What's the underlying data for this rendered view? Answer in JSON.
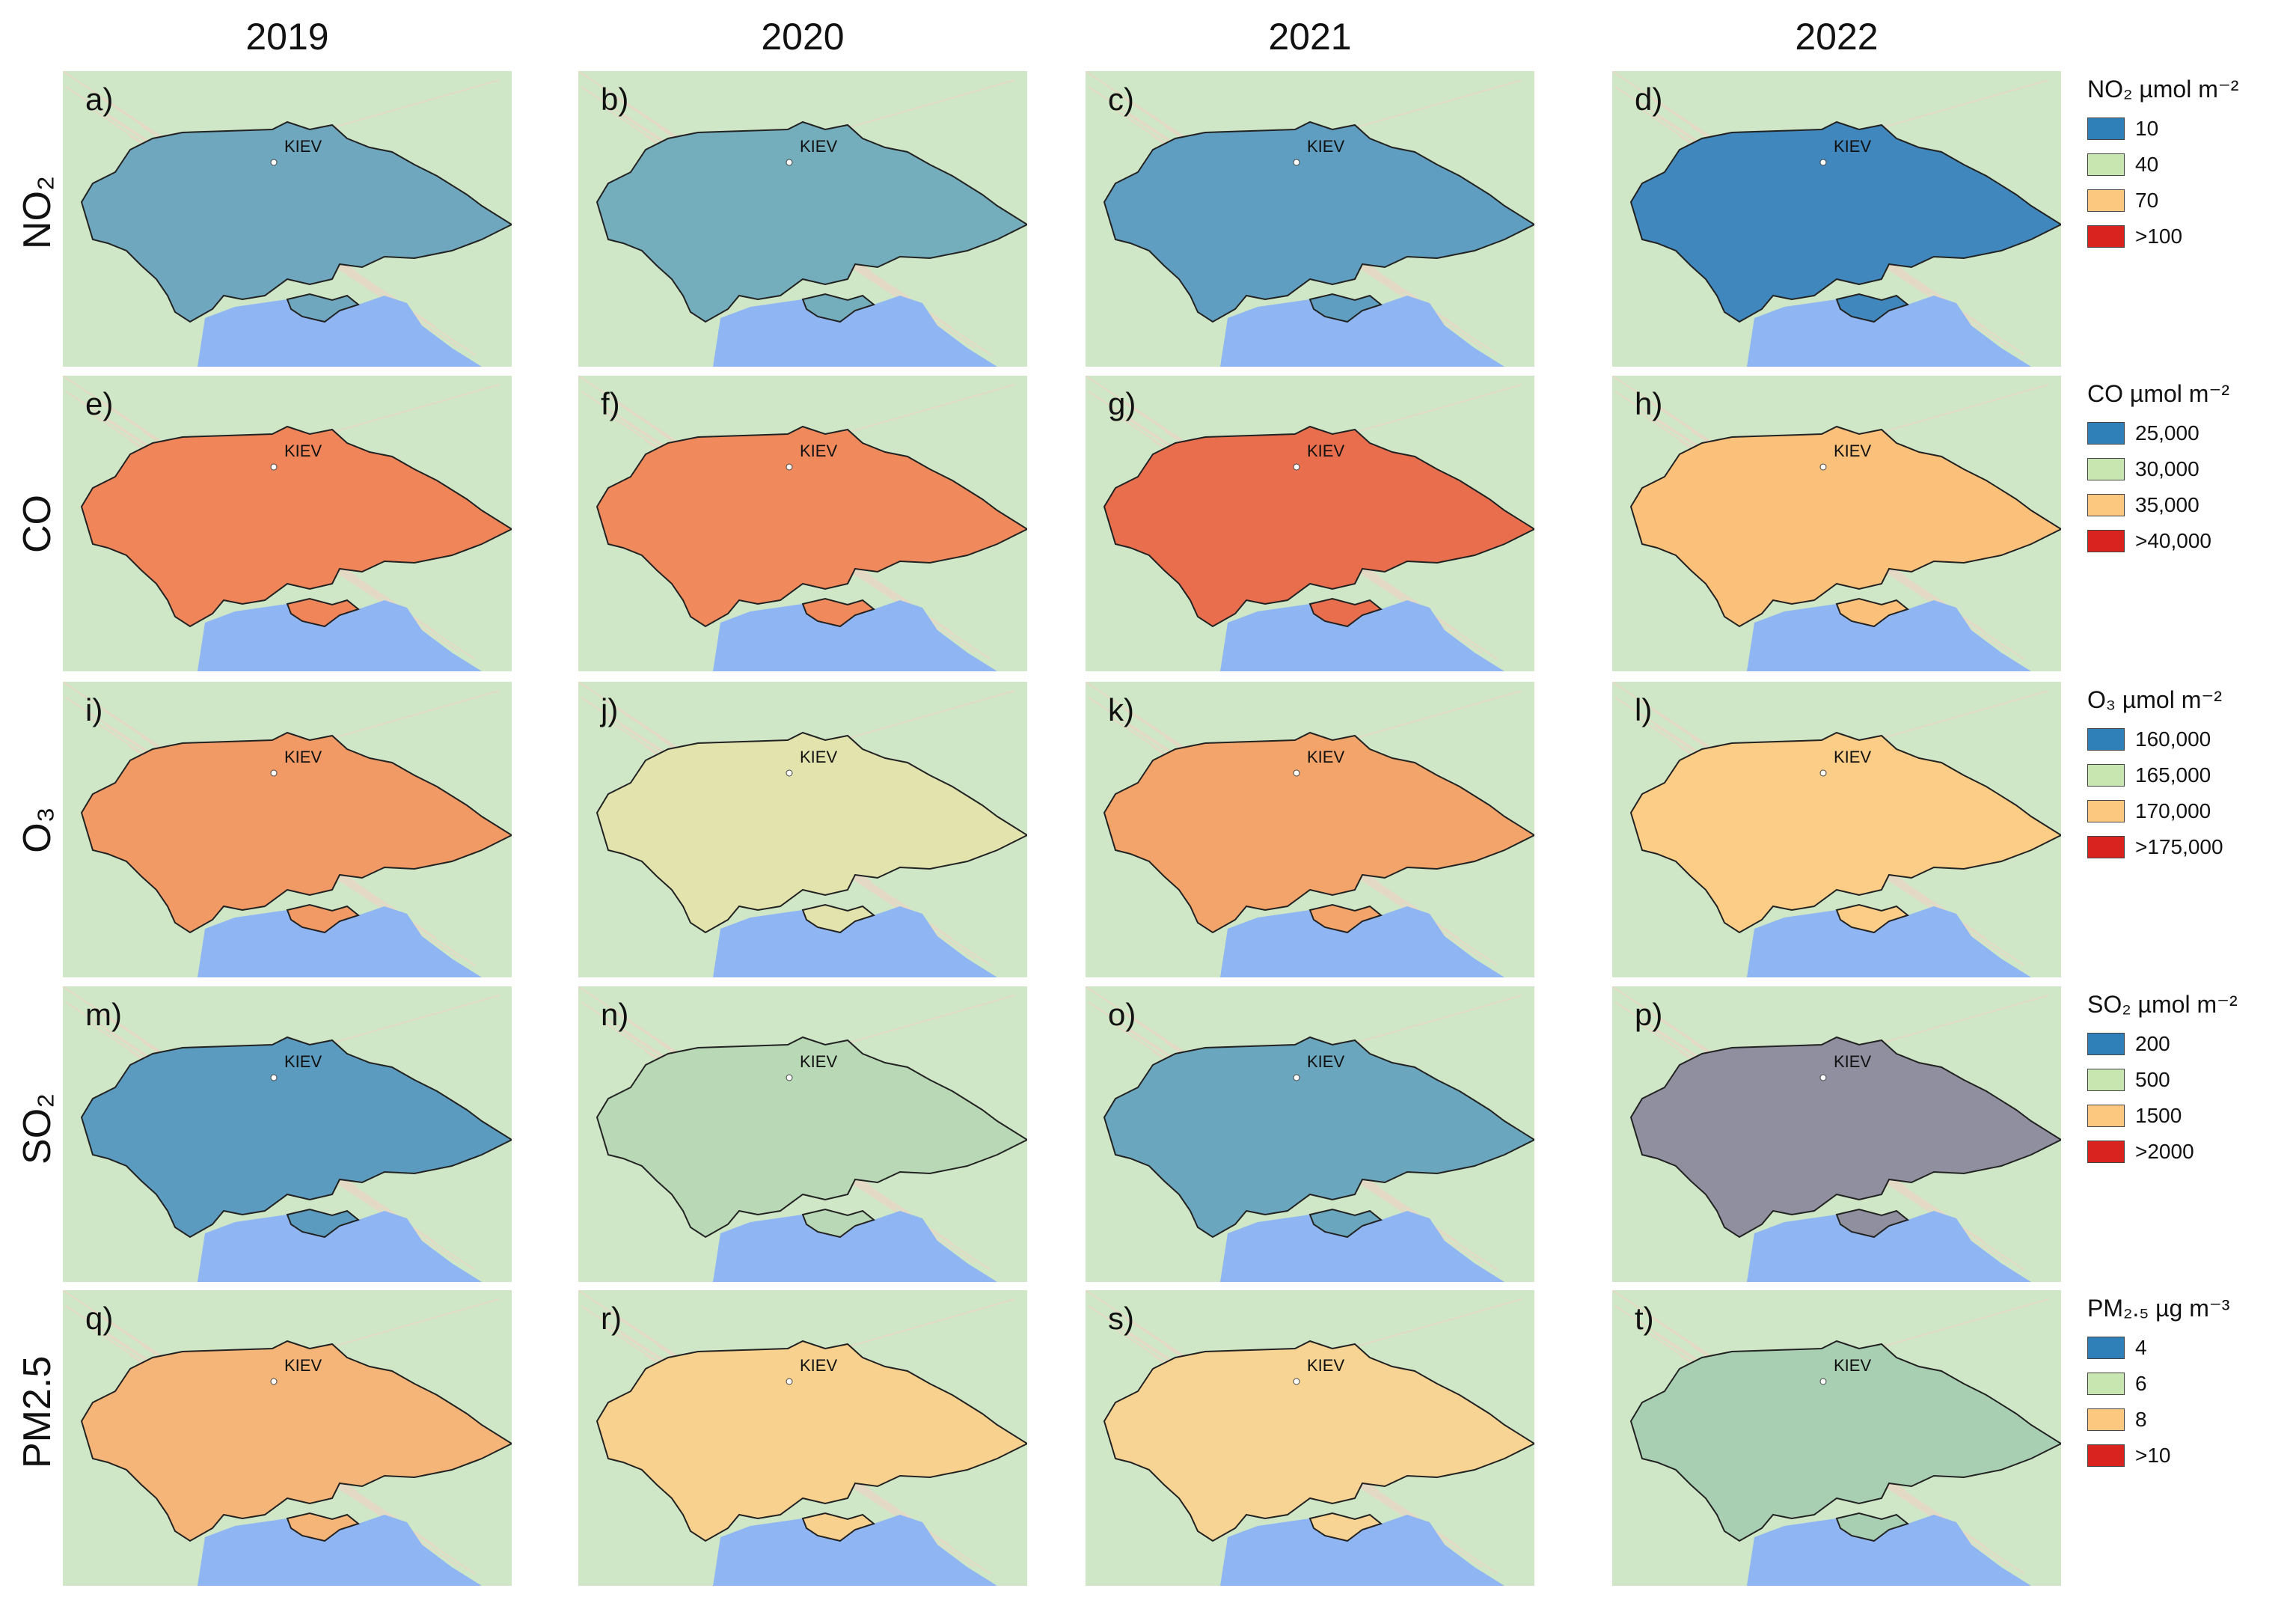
{
  "years": [
    "2019",
    "2020",
    "2021",
    "2022"
  ],
  "city_label": "KIEV",
  "colors": {
    "blue": "#2f7fb8",
    "green": "#c7e6b0",
    "orange": "#fcc880",
    "red": "#d9231e",
    "land": "#cfe7c7",
    "sea": "#8fb6f2"
  },
  "rows": [
    {
      "label": "NO₂",
      "legend_title": "NO₂ µmol m⁻²",
      "legend": [
        "10",
        "40",
        "70",
        ">100"
      ],
      "panels": [
        {
          "label": "a)",
          "fill": "#6fa7be"
        },
        {
          "label": "b)",
          "fill": "#74adbc"
        },
        {
          "label": "c)",
          "fill": "#5f9ec0"
        },
        {
          "label": "d)",
          "fill": "#3f87bd"
        }
      ]
    },
    {
      "label": "CO",
      "legend_title": "CO µmol m⁻²",
      "legend": [
        "25,000",
        "30,000",
        "35,000",
        ">40,000"
      ],
      "panels": [
        {
          "label": "e)",
          "fill": "#f0855a"
        },
        {
          "label": "f)",
          "fill": "#f08a5d"
        },
        {
          "label": "g)",
          "fill": "#e86e4e"
        },
        {
          "label": "h)",
          "fill": "#fbc07a"
        }
      ]
    },
    {
      "label": "O₃",
      "legend_title": "O₃ µmol m⁻²",
      "legend": [
        "160,000",
        "165,000",
        "170,000",
        ">175,000"
      ],
      "panels": [
        {
          "label": "i)",
          "fill": "#f19a66"
        },
        {
          "label": "j)",
          "fill": "#e2e3ad"
        },
        {
          "label": "k)",
          "fill": "#f3a46a"
        },
        {
          "label": "l)",
          "fill": "#fbcd86"
        }
      ]
    },
    {
      "label": "SO₂",
      "legend_title": "SO₂ µmol m⁻²",
      "legend": [
        "200",
        "500",
        "1500",
        ">2000"
      ],
      "panels": [
        {
          "label": "m)",
          "fill": "#5b9bbf"
        },
        {
          "label": "n)",
          "fill": "#b9d8b5"
        },
        {
          "label": "o)",
          "fill": "#6aa6be"
        },
        {
          "label": "p)",
          "fill": "#8f8fa0"
        }
      ]
    },
    {
      "label": "PM2.5",
      "legend_title": "PM₂.₅ µg m⁻³",
      "legend": [
        "4",
        "6",
        "8",
        ">10"
      ],
      "panels": [
        {
          "label": "q)",
          "fill": "#f6b578"
        },
        {
          "label": "r)",
          "fill": "#f8d18f"
        },
        {
          "label": "s)",
          "fill": "#f7d394"
        },
        {
          "label": "t)",
          "fill": "#a9cfb3"
        }
      ]
    }
  ]
}
